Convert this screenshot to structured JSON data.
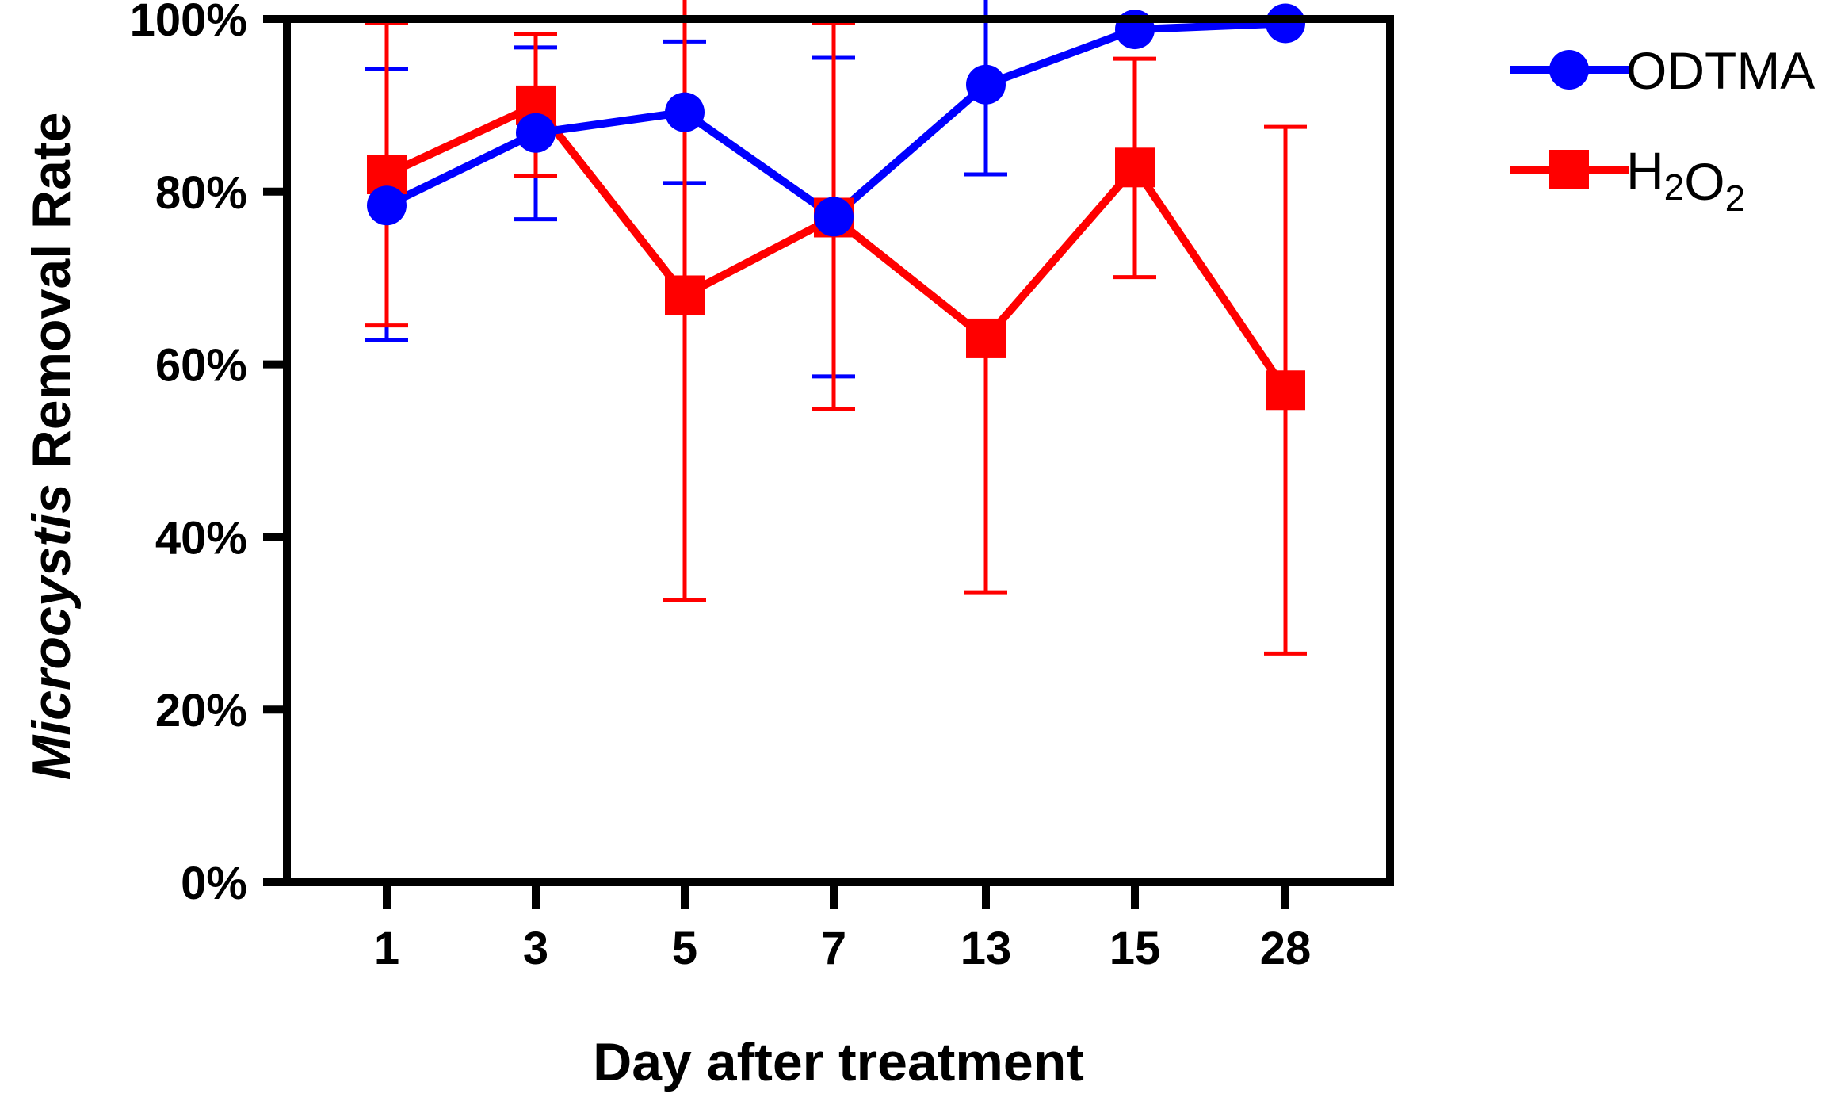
{
  "chart_data": {
    "type": "line",
    "title": "",
    "xlabel": "Day after treatment",
    "ylabel_italic": "Microcystis",
    "ylabel_rest": " Removal Rate",
    "categories": [
      "1",
      "3",
      "5",
      "7",
      "13",
      "15",
      "28"
    ],
    "ylim": [
      0,
      100
    ],
    "yticks": [
      0,
      20,
      40,
      60,
      80,
      100
    ],
    "ytick_labels": [
      "0%",
      "20%",
      "40%",
      "60%",
      "80%",
      "100%"
    ],
    "grid": false,
    "legend_position": "outside-top-right",
    "series": [
      {
        "name": "ODTMA",
        "label_parts": [
          {
            "text": "ODTMA",
            "sub": false
          }
        ],
        "color": "#0000ff",
        "marker": "circle",
        "values": [
          78.4,
          86.8,
          89.2,
          77.1,
          92.4,
          98.8,
          99.5
        ],
        "error_low": [
          62.8,
          76.8,
          81.0,
          58.6,
          82.0,
          null,
          null
        ],
        "error_high": [
          94.2,
          96.7,
          97.4,
          95.5,
          102.5,
          null,
          null
        ]
      },
      {
        "name": "H2O2",
        "label_parts": [
          {
            "text": "H",
            "sub": false
          },
          {
            "text": "2",
            "sub": true
          },
          {
            "text": "O",
            "sub": false
          },
          {
            "text": "2",
            "sub": true
          }
        ],
        "color": "#ff0000",
        "marker": "square",
        "values": [
          82.0,
          90.0,
          68.0,
          77.0,
          63.0,
          82.8,
          57.0
        ],
        "error_low": [
          64.5,
          81.8,
          32.7,
          54.8,
          33.6,
          70.1,
          26.5
        ],
        "error_high": [
          99.5,
          98.3,
          103.5,
          99.5,
          null,
          95.4,
          87.5
        ]
      }
    ]
  }
}
